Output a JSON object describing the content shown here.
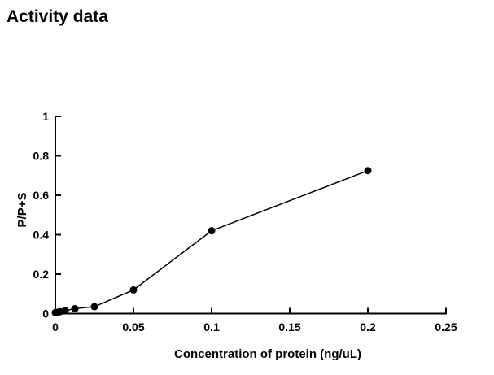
{
  "chart_data": {
    "type": "line",
    "title": "Activity data",
    "xlabel": "Concentration of protein (ng/uL)",
    "ylabel": "P/P+S",
    "xlim": [
      0,
      0.25
    ],
    "ylim": [
      0,
      1
    ],
    "x_ticks": [
      0,
      0.05,
      0.1,
      0.15,
      0.2,
      0.25
    ],
    "x_tick_labels": [
      "0",
      "0.05",
      "0.1",
      "0.15",
      "0.2",
      "0.25"
    ],
    "y_ticks": [
      0,
      0.2,
      0.4,
      0.6,
      0.8,
      1
    ],
    "y_tick_labels": [
      "0",
      "0.2",
      "0.4",
      "0.6",
      "0.8",
      "1"
    ],
    "grid": false,
    "legend": "none",
    "axis_color": "#000000",
    "background_color": "#ffffff",
    "series": [
      {
        "name": "P/P+S",
        "color": "#000000",
        "marker": "filled-circle",
        "x": [
          0,
          0.0016,
          0.0031,
          0.0063,
          0.0125,
          0.025,
          0.05,
          0.1,
          0.2
        ],
        "y": [
          0.005,
          0.007,
          0.01,
          0.015,
          0.025,
          0.035,
          0.12,
          0.42,
          0.725
        ]
      }
    ]
  }
}
